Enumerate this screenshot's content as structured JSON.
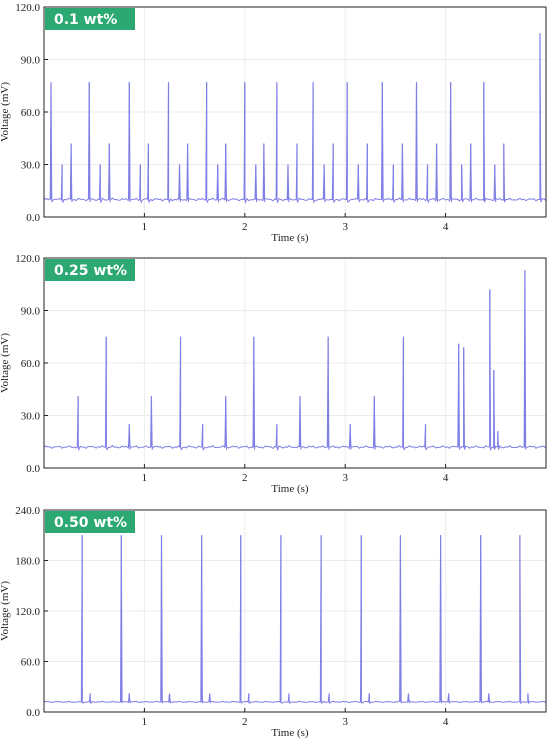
{
  "colors": {
    "line": "#7f7fe6",
    "badge": "#2ca872",
    "frame": "#222222",
    "grid": "#ececec"
  },
  "chart_data": [
    {
      "type": "line",
      "badge": "0.1 wt%",
      "xlabel": "Time (s)",
      "ylabel": "Voltage (mV)",
      "xlim": [
        0,
        5.0
      ],
      "ylim": [
        0,
        120
      ],
      "xticks": [
        1,
        2,
        3,
        4
      ],
      "xtick_labels": [
        "1",
        "2",
        "3",
        "4"
      ],
      "yticks": [
        0,
        30,
        60,
        90,
        120
      ],
      "ytick_labels": [
        "0.0",
        "30.0",
        "60.0",
        "90.0",
        "120.0"
      ],
      "baseline": 10,
      "series": [
        {
          "peaks": [
            [
              0.07,
              77
            ],
            [
              0.18,
              30
            ],
            [
              0.27,
              42
            ],
            [
              0.45,
              77
            ],
            [
              0.56,
              30
            ],
            [
              0.65,
              42
            ],
            [
              0.85,
              77
            ],
            [
              0.96,
              30
            ],
            [
              1.04,
              42
            ],
            [
              1.24,
              77
            ],
            [
              1.35,
              30
            ],
            [
              1.43,
              42
            ],
            [
              1.62,
              77
            ],
            [
              1.73,
              30
            ],
            [
              1.81,
              42
            ],
            [
              2.0,
              77
            ],
            [
              2.11,
              30
            ],
            [
              2.19,
              42
            ],
            [
              2.32,
              77
            ],
            [
              2.43,
              30
            ],
            [
              2.52,
              42
            ],
            [
              2.68,
              77
            ],
            [
              2.79,
              30
            ],
            [
              2.88,
              42
            ],
            [
              3.02,
              77
            ],
            [
              3.13,
              30
            ],
            [
              3.22,
              42
            ],
            [
              3.37,
              77
            ],
            [
              3.48,
              30
            ],
            [
              3.57,
              42
            ],
            [
              3.71,
              77
            ],
            [
              3.82,
              30
            ],
            [
              3.91,
              42
            ],
            [
              4.05,
              77
            ],
            [
              4.16,
              30
            ],
            [
              4.25,
              42
            ],
            [
              4.38,
              77
            ],
            [
              4.49,
              30
            ],
            [
              4.58,
              42
            ],
            [
              4.94,
              105
            ]
          ]
        }
      ]
    },
    {
      "type": "line",
      "badge": "0.25 wt%",
      "xlabel": "Time (s)",
      "ylabel": "Voltage (mV)",
      "xlim": [
        0,
        5.0
      ],
      "ylim": [
        0,
        120
      ],
      "xticks": [
        1,
        2,
        3,
        4
      ],
      "xtick_labels": [
        "1",
        "2",
        "3",
        "4"
      ],
      "yticks": [
        0,
        30,
        60,
        90,
        120
      ],
      "ytick_labels": [
        "0.0",
        "30.0",
        "60.0",
        "90.0",
        "120.0"
      ],
      "baseline": 12,
      "series": [
        {
          "peaks": [
            [
              0.34,
              41
            ],
            [
              0.62,
              75
            ],
            [
              0.85,
              25
            ],
            [
              1.07,
              41
            ],
            [
              1.36,
              75
            ],
            [
              1.58,
              25
            ],
            [
              1.81,
              41
            ],
            [
              2.09,
              75
            ],
            [
              2.32,
              25
            ],
            [
              2.55,
              41
            ],
            [
              2.83,
              75
            ],
            [
              3.05,
              25
            ],
            [
              3.29,
              41
            ],
            [
              3.58,
              75
            ],
            [
              3.8,
              25
            ],
            [
              4.13,
              71
            ],
            [
              4.18,
              69
            ],
            [
              4.44,
              102
            ],
            [
              4.48,
              56
            ],
            [
              4.52,
              21
            ],
            [
              4.79,
              113
            ]
          ]
        }
      ]
    },
    {
      "type": "line",
      "badge": "0.50 wt%",
      "xlabel": "Time (s)",
      "ylabel": "Voltage (mV)",
      "xlim": [
        0,
        5.0
      ],
      "ylim": [
        0,
        240
      ],
      "xticks": [
        1,
        2,
        3,
        4
      ],
      "xtick_labels": [
        "1",
        "2",
        "3",
        "4"
      ],
      "yticks": [
        0,
        60,
        120,
        180,
        240
      ],
      "ytick_labels": [
        "0.0",
        "60.0",
        "120.0",
        "180.0",
        "240.0"
      ],
      "baseline": 12,
      "series": [
        {
          "peaks": [
            [
              0.38,
              210
            ],
            [
              0.46,
              22
            ],
            [
              0.77,
              210
            ],
            [
              0.85,
              22
            ],
            [
              1.17,
              210
            ],
            [
              1.25,
              22
            ],
            [
              1.57,
              210
            ],
            [
              1.65,
              22
            ],
            [
              1.96,
              210
            ],
            [
              2.04,
              22
            ],
            [
              2.36,
              210
            ],
            [
              2.44,
              22
            ],
            [
              2.76,
              210
            ],
            [
              2.84,
              22
            ],
            [
              3.16,
              210
            ],
            [
              3.24,
              22
            ],
            [
              3.55,
              210
            ],
            [
              3.63,
              22
            ],
            [
              3.95,
              210
            ],
            [
              4.03,
              22
            ],
            [
              4.35,
              210
            ],
            [
              4.43,
              22
            ],
            [
              4.74,
              210
            ],
            [
              4.82,
              22
            ]
          ]
        }
      ]
    }
  ]
}
